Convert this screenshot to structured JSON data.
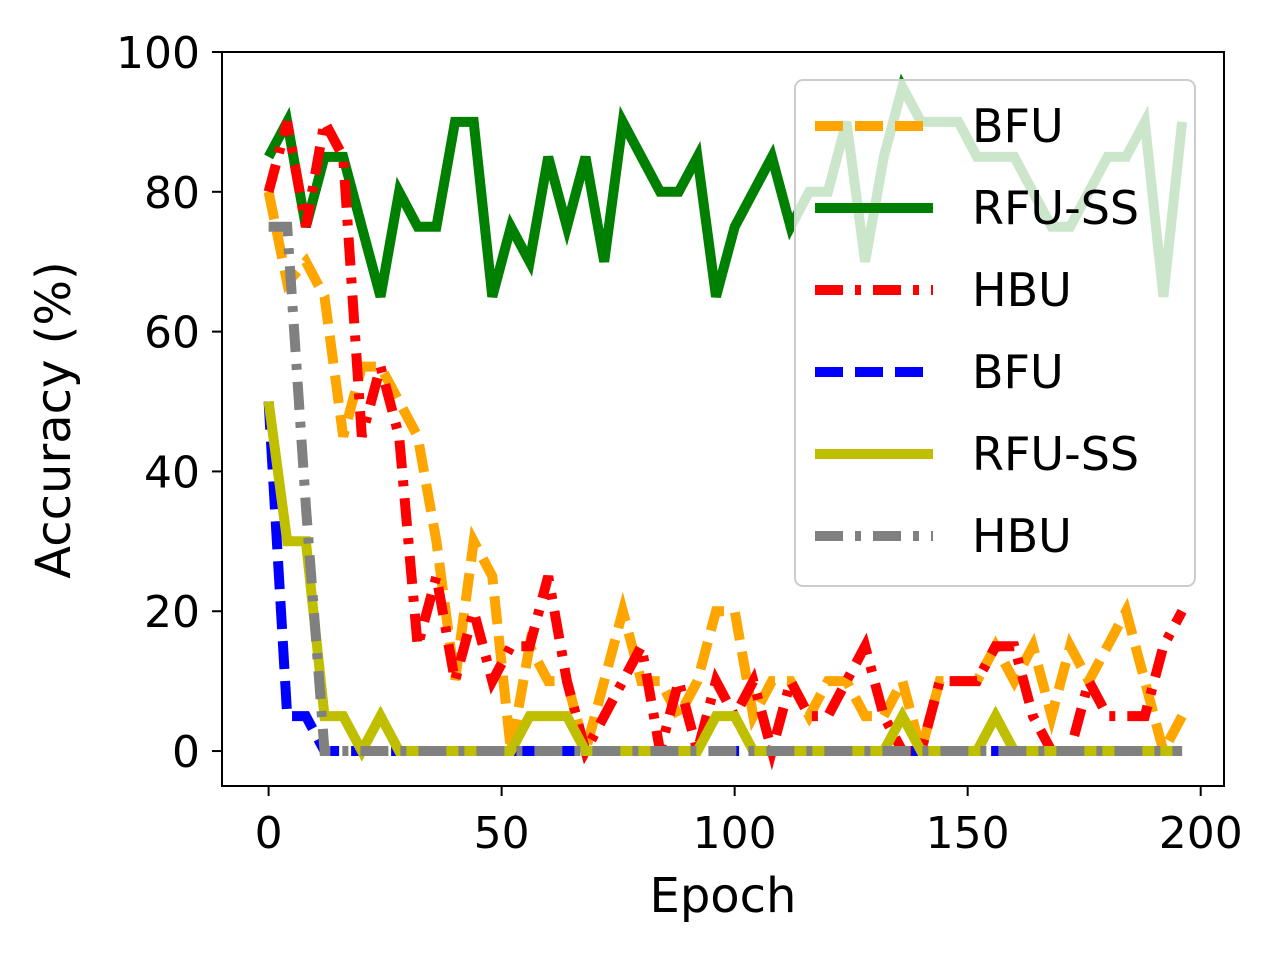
{
  "chart_data": {
    "type": "line",
    "xlabel": "Epoch",
    "ylabel": "Accuracy (%)",
    "xlim": [
      -10,
      205
    ],
    "ylim": [
      -5,
      100
    ],
    "x_ticks": [
      0,
      50,
      100,
      150,
      200
    ],
    "y_ticks": [
      0,
      20,
      40,
      60,
      80,
      100
    ],
    "grid": false,
    "legend_position": "top-right",
    "series": [
      {
        "name": "BFU",
        "color": "#ffa500",
        "dash": "dashed",
        "x": [
          0,
          4,
          8,
          12,
          16,
          20,
          24,
          28,
          32,
          36,
          40,
          44,
          48,
          52,
          56,
          60,
          64,
          68,
          72,
          76,
          80,
          84,
          88,
          92,
          96,
          100,
          104,
          108,
          112,
          116,
          120,
          124,
          128,
          132,
          136,
          140,
          144,
          148,
          152,
          156,
          160,
          164,
          168,
          172,
          176,
          180,
          184,
          188,
          192,
          196
        ],
        "values": [
          80,
          67,
          70,
          65,
          45,
          55,
          55,
          50,
          45,
          30,
          10,
          30,
          25,
          0,
          15,
          10,
          10,
          0,
          10,
          20,
          10,
          10,
          5,
          10,
          20,
          20,
          5,
          10,
          10,
          5,
          10,
          10,
          5,
          5,
          10,
          0,
          10,
          10,
          10,
          15,
          10,
          15,
          5,
          15,
          10,
          15,
          20,
          10,
          0,
          5
        ]
      },
      {
        "name": "RFU-SS",
        "color": "#008000",
        "dash": "solid",
        "x": [
          0,
          4,
          8,
          12,
          16,
          20,
          24,
          28,
          32,
          36,
          40,
          44,
          48,
          52,
          56,
          60,
          64,
          68,
          72,
          76,
          80,
          84,
          88,
          92,
          96,
          100,
          104,
          108,
          112,
          116,
          120,
          124,
          128,
          132,
          136,
          140,
          144,
          148,
          152,
          156,
          160,
          164,
          168,
          172,
          176,
          180,
          184,
          188,
          192,
          196
        ],
        "values": [
          85,
          90,
          75,
          85,
          85,
          75,
          65,
          80,
          75,
          75,
          90,
          90,
          65,
          75,
          70,
          85,
          75,
          85,
          70,
          90,
          85,
          80,
          80,
          85,
          65,
          75,
          80,
          85,
          75,
          80,
          80,
          90,
          70,
          85,
          95,
          90,
          90,
          90,
          85,
          85,
          85,
          80,
          75,
          75,
          80,
          85,
          85,
          90,
          65,
          90
        ]
      },
      {
        "name": "HBU",
        "color": "#ff0000",
        "dash": "dashdot",
        "x": [
          0,
          4,
          8,
          12,
          16,
          20,
          24,
          28,
          32,
          36,
          40,
          44,
          48,
          52,
          56,
          60,
          64,
          68,
          72,
          76,
          80,
          84,
          88,
          92,
          96,
          100,
          104,
          108,
          112,
          116,
          120,
          124,
          128,
          132,
          136,
          140,
          144,
          148,
          152,
          156,
          160,
          164,
          168,
          172,
          176,
          180,
          184,
          188,
          192,
          196
        ],
        "values": [
          80,
          90,
          75,
          90,
          85,
          45,
          55,
          45,
          15,
          25,
          10,
          20,
          10,
          15,
          15,
          25,
          10,
          0,
          5,
          10,
          15,
          0,
          10,
          0,
          10,
          5,
          10,
          0,
          10,
          5,
          5,
          10,
          15,
          5,
          0,
          0,
          10,
          10,
          10,
          15,
          15,
          5,
          0,
          0,
          10,
          5,
          5,
          5,
          15,
          20
        ]
      },
      {
        "name": "BFU",
        "color": "#0000ff",
        "dash": "dashed",
        "x": [
          0,
          4,
          8,
          12,
          16,
          20,
          24,
          28,
          32,
          36,
          40,
          44,
          48,
          52,
          56,
          60,
          64,
          68,
          72,
          76,
          80,
          84,
          88,
          92,
          96,
          100,
          104,
          108,
          112,
          116,
          120,
          124,
          128,
          132,
          136,
          140,
          144,
          148,
          152,
          156,
          160,
          164,
          168,
          172,
          176,
          180,
          184,
          188,
          192,
          196
        ],
        "values": [
          50,
          5,
          5,
          0,
          0,
          0,
          0,
          0,
          0,
          0,
          0,
          0,
          0,
          0,
          0,
          0,
          0,
          0,
          0,
          0,
          0,
          0,
          0,
          0,
          0,
          0,
          0,
          0,
          0,
          0,
          0,
          0,
          0,
          0,
          0,
          0,
          0,
          0,
          0,
          0,
          0,
          0,
          0,
          0,
          0,
          0,
          0,
          0,
          0,
          0
        ]
      },
      {
        "name": "RFU-SS",
        "color": "#bfbf00",
        "dash": "solid",
        "x": [
          0,
          4,
          8,
          12,
          16,
          20,
          24,
          28,
          32,
          36,
          40,
          44,
          48,
          52,
          56,
          60,
          64,
          68,
          72,
          76,
          80,
          84,
          88,
          92,
          96,
          100,
          104,
          108,
          112,
          116,
          120,
          124,
          128,
          132,
          136,
          140,
          144,
          148,
          152,
          156,
          160,
          164,
          168,
          172,
          176,
          180,
          184,
          188,
          192,
          196
        ],
        "values": [
          50,
          30,
          30,
          5,
          5,
          0,
          5,
          0,
          0,
          0,
          0,
          0,
          0,
          0,
          5,
          5,
          5,
          0,
          0,
          0,
          0,
          0,
          0,
          0,
          5,
          5,
          0,
          0,
          0,
          0,
          0,
          0,
          0,
          0,
          5,
          0,
          0,
          0,
          0,
          5,
          0,
          0,
          0,
          0,
          0,
          0,
          0,
          0,
          0,
          0
        ]
      },
      {
        "name": "HBU",
        "color": "#808080",
        "dash": "dashdot",
        "x": [
          0,
          4,
          8,
          12,
          16,
          20,
          24,
          28,
          32,
          36,
          40,
          44,
          48,
          52,
          56,
          60,
          64,
          68,
          72,
          76,
          80,
          84,
          88,
          92,
          96,
          100,
          104,
          108,
          112,
          116,
          120,
          124,
          128,
          132,
          136,
          140,
          144,
          148,
          152,
          156,
          160,
          164,
          168,
          172,
          176,
          180,
          184,
          188,
          192,
          196
        ],
        "values": [
          75,
          75,
          35,
          0,
          0,
          0,
          0,
          0,
          0,
          0,
          0,
          0,
          0,
          0,
          0,
          0,
          0,
          0,
          0,
          0,
          0,
          0,
          0,
          0,
          0,
          0,
          0,
          0,
          0,
          0,
          0,
          0,
          0,
          0,
          0,
          0,
          0,
          0,
          0,
          0,
          0,
          0,
          0,
          0,
          0,
          0,
          0,
          0,
          0,
          0
        ]
      }
    ]
  }
}
